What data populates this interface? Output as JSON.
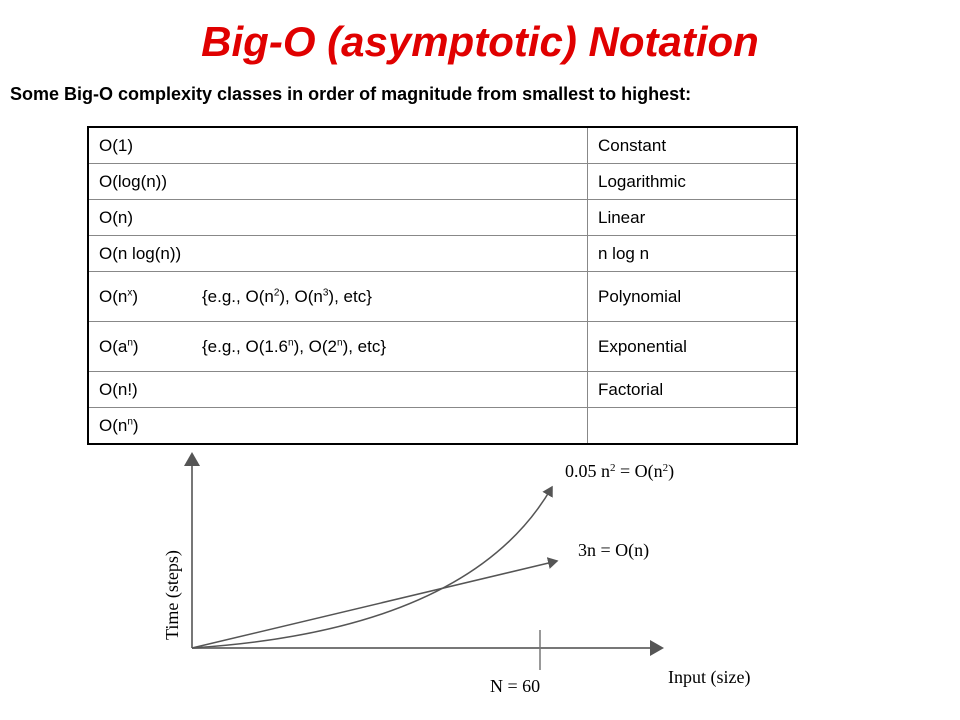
{
  "header": {
    "title": "Big-O (asymptotic) Notation",
    "subtitle": "Some Big-O complexity classes in order of magnitude from smallest to highest:"
  },
  "table": {
    "rows": [
      {
        "notation": [
          {
            "text": "O(1)"
          }
        ],
        "name": "Constant"
      },
      {
        "notation": [
          {
            "text": "O(log(n))"
          }
        ],
        "name": "Logarithmic"
      },
      {
        "notation": [
          {
            "text": "O(n)"
          }
        ],
        "name": "Linear"
      },
      {
        "notation": [
          {
            "text": "O(n log(n))"
          }
        ],
        "name": "n log n"
      },
      {
        "notation": [
          {
            "text": "O(n"
          },
          {
            "sup": "x"
          },
          {
            "text": ")"
          }
        ],
        "example": [
          {
            "text": "{e.g., O(n"
          },
          {
            "sup": "2"
          },
          {
            "text": "), O(n"
          },
          {
            "sup": "3"
          },
          {
            "text": "), etc}"
          }
        ],
        "name": "Polynomial"
      },
      {
        "notation": [
          {
            "text": "O(a"
          },
          {
            "sup": "n"
          },
          {
            "text": ")"
          }
        ],
        "example": [
          {
            "text": "{e.g., O(1.6"
          },
          {
            "sup": "n"
          },
          {
            "text": "), O(2"
          },
          {
            "sup": "n"
          },
          {
            "text": "), etc}"
          }
        ],
        "name": "Exponential"
      },
      {
        "notation": [
          {
            "text": "O(n!)"
          }
        ],
        "name": "Factorial"
      },
      {
        "notation": [
          {
            "text": "O(n"
          },
          {
            "sup": "n"
          },
          {
            "text": ")"
          }
        ]
      }
    ]
  },
  "diagram": {
    "quadratic_label": [
      {
        "text": "0.05 n"
      },
      {
        "sup": "2"
      },
      {
        "text": " = O(n"
      },
      {
        "sup": "2"
      },
      {
        "text": ")"
      }
    ],
    "linear_label": "3n = O(n)",
    "y_label": "Time (steps)",
    "x_label": "Input (size)",
    "crossover_label": "N = 60"
  }
}
